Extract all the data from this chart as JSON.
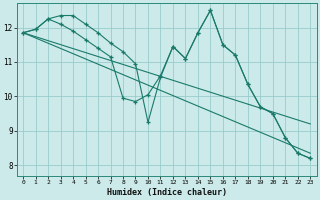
{
  "xlabel": "Humidex (Indice chaleur)",
  "bg_color": "#cceaea",
  "grid_color": "#99cccc",
  "line_color": "#1a7a6a",
  "xlim": [
    -0.5,
    23.5
  ],
  "ylim": [
    7.7,
    12.7
  ],
  "xticks": [
    0,
    1,
    2,
    3,
    4,
    5,
    6,
    7,
    8,
    9,
    10,
    11,
    12,
    13,
    14,
    15,
    16,
    17,
    18,
    19,
    20,
    21,
    22,
    23
  ],
  "yticks": [
    8,
    9,
    10,
    11,
    12
  ],
  "series": [
    {
      "x": [
        0,
        1,
        2,
        3,
        4,
        5,
        6,
        7,
        8,
        9,
        10,
        11,
        12,
        13,
        14,
        15,
        16,
        17,
        18,
        19,
        20,
        21,
        22,
        23
      ],
      "y": [
        11.85,
        11.95,
        12.25,
        12.1,
        11.9,
        11.65,
        11.4,
        11.15,
        9.95,
        9.85,
        10.05,
        10.6,
        11.45,
        11.1,
        11.85,
        12.5,
        11.5,
        11.2,
        10.35,
        9.7,
        9.5,
        8.8,
        8.35,
        8.2
      ],
      "marker": true
    },
    {
      "x": [
        0,
        23
      ],
      "y": [
        11.85,
        9.2
      ],
      "marker": false
    },
    {
      "x": [
        0,
        23
      ],
      "y": [
        11.85,
        8.35
      ],
      "marker": false
    },
    {
      "x": [
        0,
        1,
        2,
        3,
        4,
        5,
        6,
        7,
        8,
        9,
        10,
        11,
        12,
        13,
        14,
        15,
        16,
        17,
        18,
        19,
        20,
        21,
        22,
        23
      ],
      "y": [
        11.85,
        11.95,
        12.25,
        12.35,
        12.35,
        12.1,
        11.85,
        11.55,
        11.3,
        10.95,
        9.25,
        10.55,
        11.45,
        11.1,
        11.85,
        12.5,
        11.5,
        11.2,
        10.35,
        9.7,
        9.5,
        8.8,
        8.35,
        8.2
      ],
      "marker": true
    }
  ]
}
